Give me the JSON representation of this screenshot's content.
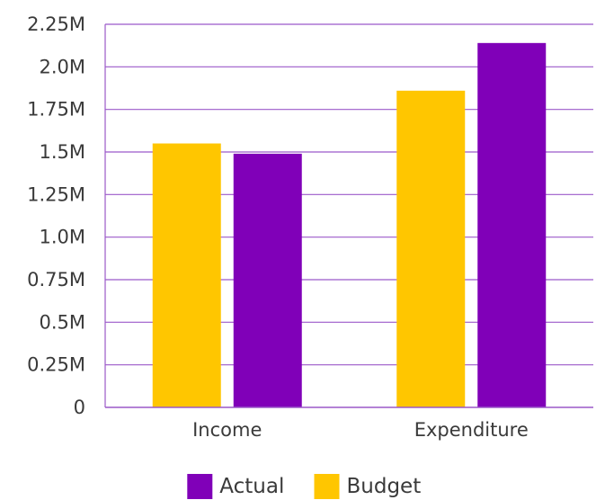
{
  "chart_data": {
    "type": "bar",
    "categories": [
      "Income",
      "Expenditure"
    ],
    "series": [
      {
        "name": "Budget",
        "values": [
          1.55,
          1.86
        ],
        "color": "#ffc600"
      },
      {
        "name": "Actual",
        "values": [
          1.49,
          2.14
        ],
        "color": "#8000b8"
      }
    ],
    "y_ticks": [
      "0",
      "0.25M",
      "0.5M",
      "0.75M",
      "1.0M",
      "1.25M",
      "1.5M",
      "1.75M",
      "2.0M",
      "2.25M"
    ],
    "ylim": [
      0,
      2.25
    ],
    "y_unit": "millions",
    "grid": true,
    "grid_color": "#9b59c9",
    "legend": {
      "position": "bottom",
      "order": [
        "Actual",
        "Budget"
      ]
    }
  }
}
